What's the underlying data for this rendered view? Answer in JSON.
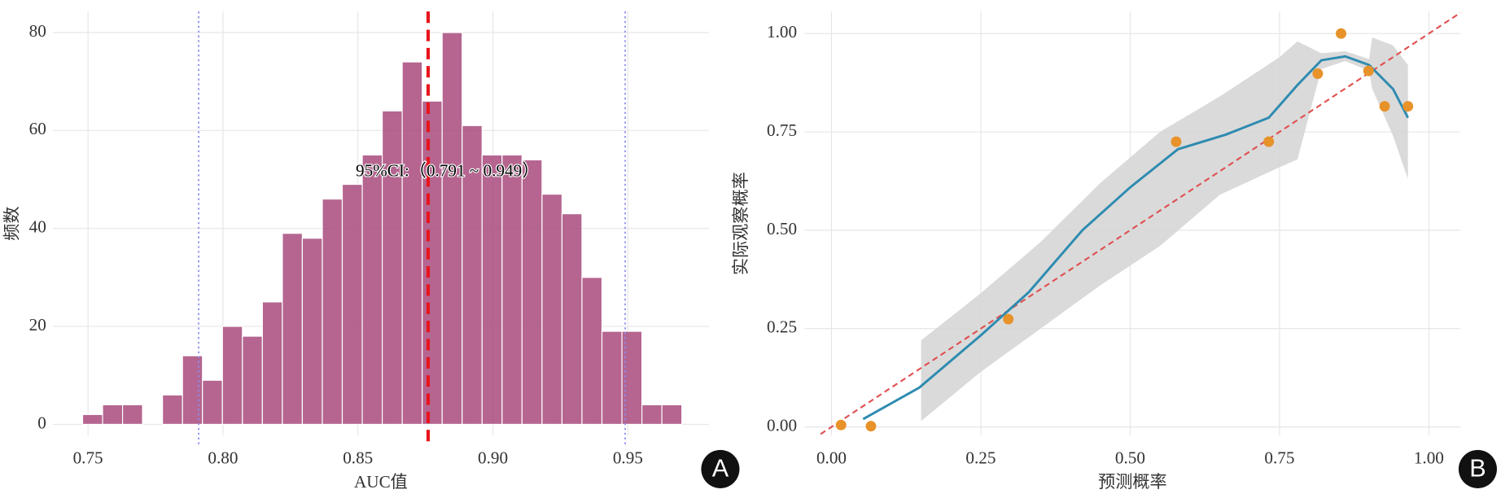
{
  "chart_data": [
    {
      "type": "histogram",
      "x_label": "AUC值",
      "y_label": "频数",
      "panel_label": "A",
      "annotation": "95%CI:（0.791 ~ 0.949）",
      "color": "#a84a7c",
      "bins": [
        0.748,
        0.7554,
        0.7628,
        0.7702,
        0.7776,
        0.785,
        0.7924,
        0.7998,
        0.8072,
        0.8146,
        0.822,
        0.8294,
        0.8368,
        0.8442,
        0.8516,
        0.859,
        0.8664,
        0.8738,
        0.8812,
        0.8886,
        0.896,
        0.9034,
        0.9108,
        0.9182,
        0.9256,
        0.933,
        0.9404,
        0.9478,
        0.9552,
        0.9626,
        0.97
      ],
      "counts": [
        2,
        4,
        4,
        0,
        6,
        14,
        9,
        20,
        18,
        25,
        39,
        38,
        46,
        49,
        55,
        64,
        74,
        66,
        80,
        61,
        55,
        55,
        54,
        47,
        43,
        30,
        19,
        19,
        4,
        4
      ],
      "vlines": [
        {
          "x": 0.791,
          "color": "#8c8cf0",
          "style": "dotted"
        },
        {
          "x": 0.949,
          "color": "#8c8cf0",
          "style": "dotted"
        },
        {
          "x": 0.876,
          "color": "#e8141c",
          "style": "dashed"
        }
      ],
      "xlim": [
        0.737,
        0.98
      ],
      "ylim": [
        -2.3,
        84.3
      ],
      "xticks": [
        0.75,
        {
          "value": 0.8,
          "label": "0.80"
        },
        0.85,
        {
          "value": 0.9,
          "label": "0.90"
        },
        0.95
      ],
      "yticks": [
        0,
        20,
        40,
        60,
        80
      ],
      "grid": true
    },
    {
      "type": "line",
      "x_label": "预测概率",
      "y_label": "实际观察概率",
      "panel_label": "B",
      "xlim": [
        -0.045,
        1.053
      ],
      "ylim": [
        -0.022,
        1.056
      ],
      "xticks": [
        {
          "value": 0,
          "label": "0.00"
        },
        0.25,
        {
          "value": 0.5,
          "label": "0.50"
        },
        0.75,
        {
          "value": 1,
          "label": "1.00"
        }
      ],
      "yticks": [
        {
          "value": 0,
          "label": "0.00"
        },
        0.25,
        {
          "value": 0.5,
          "label": "0.50"
        },
        0.75,
        {
          "value": 1,
          "label": "1.00"
        }
      ],
      "grid": true,
      "band": {
        "color": "#d3d3d3",
        "x": [
          0.15,
          0.25,
          0.35,
          0.45,
          0.55,
          0.65,
          0.75,
          0.78,
          0.82,
          0.86,
          0.9,
          0.905,
          0.94,
          0.965
        ],
        "upper": [
          0.22,
          0.34,
          0.47,
          0.62,
          0.75,
          0.84,
          0.94,
          0.98,
          0.95,
          0.955,
          0.935,
          0.99,
          0.97,
          0.92
        ],
        "lower": [
          0.015,
          0.14,
          0.25,
          0.36,
          0.46,
          0.59,
          0.66,
          0.68,
          0.91,
          0.93,
          0.905,
          0.86,
          0.74,
          0.63
        ]
      },
      "reference": {
        "color": "#e05050",
        "x": [
          -0.045,
          1.053
        ],
        "y": [
          -0.045,
          1.053
        ]
      },
      "curve": {
        "color": "#2e8bb0",
        "x": [
          0.053,
          0.147,
          0.25,
          0.33,
          0.42,
          0.5,
          0.58,
          0.66,
          0.732,
          0.78,
          0.82,
          0.86,
          0.9,
          0.94,
          0.965
        ],
        "y": [
          0.02,
          0.1,
          0.233,
          0.342,
          0.5,
          0.609,
          0.706,
          0.743,
          0.786,
          0.869,
          0.932,
          0.942,
          0.92,
          0.859,
          0.786
        ]
      },
      "points": {
        "color": "#e8922a",
        "x": [
          0.016,
          0.066,
          0.296,
          0.577,
          0.732,
          0.814,
          0.853,
          0.899,
          0.926,
          0.965
        ],
        "y": [
          0.005,
          0.002,
          0.274,
          0.725,
          0.725,
          0.898,
          1.0,
          0.905,
          0.815,
          0.815
        ]
      }
    }
  ]
}
